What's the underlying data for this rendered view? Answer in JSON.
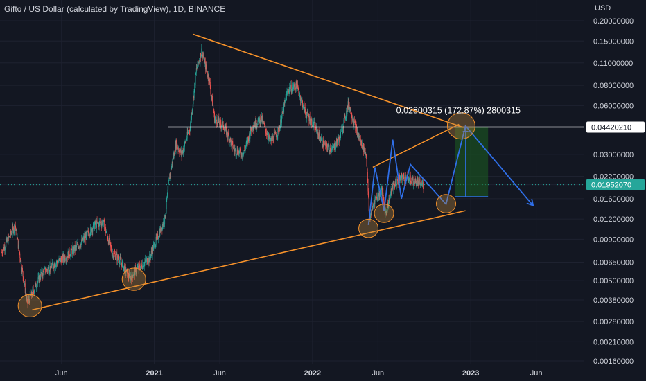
{
  "header": {
    "title": "Gifto / US Dollar (calculated by TradingView), 1D, BINANCE",
    "currency": "USD"
  },
  "chart_data": {
    "type": "candlestick",
    "title": "Gifto / US Dollar (calculated by TradingView), 1D, BINANCE",
    "yscale": "log",
    "ylim": [
      0.0016,
      0.2
    ],
    "y_ticks": [
      "0.20000000",
      "0.15000000",
      "0.11000000",
      "0.08000000",
      "0.06000000",
      "0.04420210",
      "0.03000000",
      "0.02200000",
      "0.01952070",
      "0.01600000",
      "0.01200000",
      "0.00900000",
      "0.00650000",
      "0.00500000",
      "0.00380000",
      "0.00280000",
      "0.00210000",
      "0.00160000"
    ],
    "x_ticks": [
      {
        "label": "Jun",
        "date": "2020-06-01"
      },
      {
        "label": "2021",
        "date": "2021-01-01",
        "bold": true
      },
      {
        "label": "Jun",
        "date": "2021-06-01"
      },
      {
        "label": "2022",
        "date": "2022-01-01",
        "bold": true
      },
      {
        "label": "Jun",
        "date": "2022-06-01"
      },
      {
        "label": "2023",
        "date": "2023-01-01",
        "bold": true
      },
      {
        "label": "Jun",
        "date": "2023-06-01"
      }
    ],
    "xlim": [
      "2020-01-11",
      "2023-09-20"
    ],
    "price_path": [
      [
        "2020-01-15",
        0.0075
      ],
      [
        "2020-02-15",
        0.011
      ],
      [
        "2020-03-14",
        0.0036
      ],
      [
        "2020-04-15",
        0.0055
      ],
      [
        "2020-05-15",
        0.0063
      ],
      [
        "2020-06-15",
        0.0072
      ],
      [
        "2020-07-15",
        0.0085
      ],
      [
        "2020-08-15",
        0.011
      ],
      [
        "2020-09-05",
        0.0115
      ],
      [
        "2020-09-25",
        0.0075
      ],
      [
        "2020-10-15",
        0.0066
      ],
      [
        "2020-11-05",
        0.0052
      ],
      [
        "2020-11-25",
        0.006
      ],
      [
        "2020-12-20",
        0.0068
      ],
      [
        "2021-01-05",
        0.0088
      ],
      [
        "2021-01-25",
        0.012
      ],
      [
        "2021-02-05",
        0.022
      ],
      [
        "2021-02-20",
        0.035
      ],
      [
        "2021-03-05",
        0.03
      ],
      [
        "2021-03-25",
        0.045
      ],
      [
        "2021-04-08",
        0.1
      ],
      [
        "2021-04-20",
        0.13
      ],
      [
        "2021-05-08",
        0.085
      ],
      [
        "2021-05-20",
        0.05
      ],
      [
        "2021-06-10",
        0.045
      ],
      [
        "2021-07-05",
        0.032
      ],
      [
        "2021-07-25",
        0.03
      ],
      [
        "2021-08-15",
        0.045
      ],
      [
        "2021-09-05",
        0.05
      ],
      [
        "2021-09-25",
        0.036
      ],
      [
        "2021-10-15",
        0.042
      ],
      [
        "2021-11-05",
        0.075
      ],
      [
        "2021-11-25",
        0.08
      ],
      [
        "2021-12-15",
        0.055
      ],
      [
        "2022-01-05",
        0.045
      ],
      [
        "2022-01-25",
        0.035
      ],
      [
        "2022-02-15",
        0.032
      ],
      [
        "2022-03-05",
        0.038
      ],
      [
        "2022-03-25",
        0.062
      ],
      [
        "2022-04-15",
        0.04
      ],
      [
        "2022-05-05",
        0.03
      ],
      [
        "2022-05-12",
        0.012
      ],
      [
        "2022-05-25",
        0.016
      ],
      [
        "2022-06-10",
        0.018
      ],
      [
        "2022-06-18",
        0.013
      ],
      [
        "2022-07-05",
        0.019
      ],
      [
        "2022-07-25",
        0.022
      ],
      [
        "2022-08-15",
        0.021
      ],
      [
        "2022-09-01",
        0.02
      ],
      [
        "2022-09-15",
        0.0195
      ]
    ],
    "last_price": "0.01952070",
    "level_price": "0.04420210",
    "measure_label": "0.02800315 (172.87%) 2800315",
    "colors": {
      "background": "#131722",
      "grid": "#1e2230",
      "up": "#26a69a",
      "down": "#ef5350",
      "orange": "#f7922a",
      "blue": "#2f6fe8",
      "white": "#ffffff",
      "last_label_bg": "#26a69a",
      "measure_fill": "#1b5e20"
    },
    "annotations": {
      "orange_upper_line": [
        [
          "2021-04-01",
          0.165
        ],
        [
          "2022-12-15",
          0.044
        ]
      ],
      "orange_lower_line": [
        [
          "2020-03-25",
          0.0033
        ],
        [
          "2022-12-20",
          0.0135
        ]
      ],
      "orange_short_line": [
        [
          "2022-05-20",
          0.025
        ],
        [
          "2022-12-05",
          0.046
        ]
      ],
      "white_level": [
        [
          "2021-02-01",
          0.0442
        ],
        [
          "2023-09-20",
          0.0442
        ]
      ],
      "blue_path": [
        [
          "2022-05-10",
          0.011
        ],
        [
          "2022-05-25",
          0.025
        ],
        [
          "2022-06-15",
          0.0135
        ],
        [
          "2022-07-05",
          0.037
        ],
        [
          "2022-07-25",
          0.016
        ],
        [
          "2022-08-15",
          0.026
        ],
        [
          "2022-11-05",
          0.0148
        ],
        [
          "2022-12-20",
          0.045
        ],
        [
          "2023-05-25",
          0.0145
        ]
      ],
      "circles": [
        [
          "2020-03-20",
          0.0035
        ],
        [
          "2020-11-15",
          0.0051
        ],
        [
          "2022-05-10",
          0.0105
        ],
        [
          "2022-06-15",
          0.013
        ],
        [
          "2022-11-05",
          0.0149
        ],
        [
          "2022-12-10",
          0.045
        ]
      ],
      "measure_rect": [
        [
          "2022-11-25",
          0.0165
        ],
        [
          "2023-02-10",
          0.0442
        ]
      ],
      "measure_line_x": "2022-12-20"
    }
  }
}
